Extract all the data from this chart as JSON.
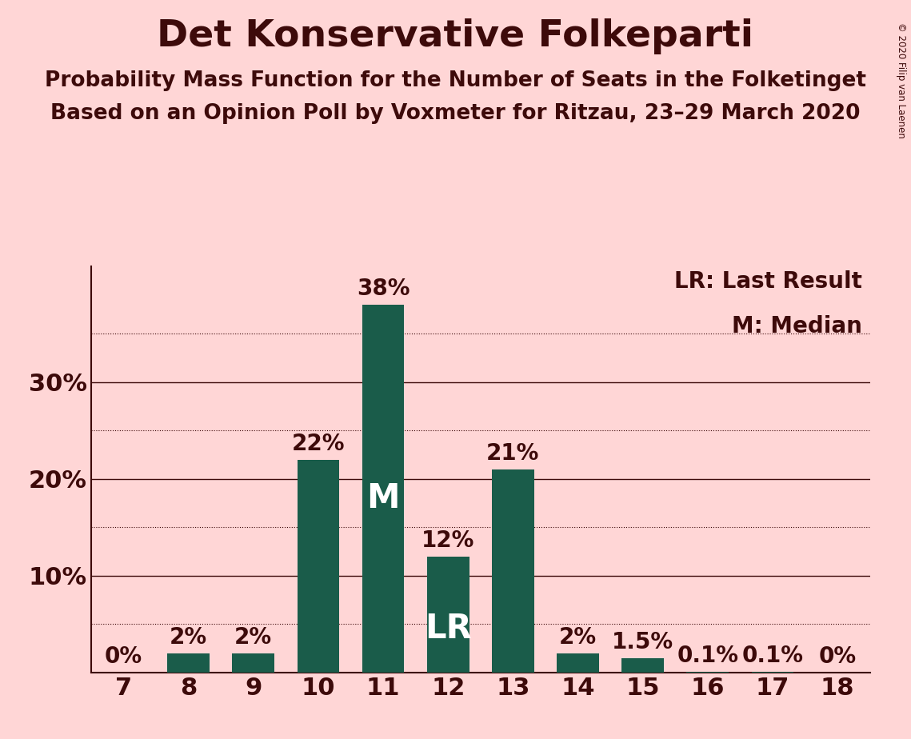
{
  "title": "Det Konservative Folkeparti",
  "subtitle1": "Probability Mass Function for the Number of Seats in the Folketinget",
  "subtitle2": "Based on an Opinion Poll by Voxmeter for Ritzau, 23–29 March 2020",
  "copyright": "© 2020 Filip van Laenen",
  "seats": [
    7,
    8,
    9,
    10,
    11,
    12,
    13,
    14,
    15,
    16,
    17,
    18
  ],
  "probabilities": [
    0.0,
    2.0,
    2.0,
    22.0,
    38.0,
    12.0,
    21.0,
    2.0,
    1.5,
    0.1,
    0.1,
    0.0
  ],
  "bar_color": "#1a5c4a",
  "background_color": "#ffd6d6",
  "text_color": "#3d0a0a",
  "label_color": "#ffffff",
  "median_seat": 11,
  "last_result_seat": 12,
  "legend_lr": "LR: Last Result",
  "legend_m": "M: Median",
  "ylim": [
    0,
    42
  ],
  "bar_width": 0.65,
  "title_fontsize": 34,
  "subtitle_fontsize": 19,
  "bar_label_fontsize": 20,
  "legend_fontsize": 20,
  "tick_fontsize": 22,
  "median_label_fontsize": 30,
  "lr_label_fontsize": 30
}
